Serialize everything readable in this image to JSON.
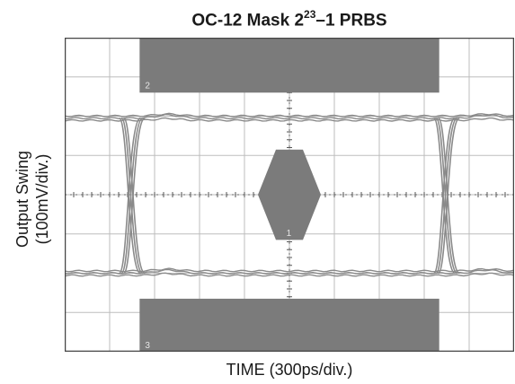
{
  "chart_data": {
    "type": "eye-diagram",
    "title_parts": {
      "prefix": "OC-12 Mask 2",
      "exponent": "23",
      "suffix": "–1 PRBS"
    },
    "xlabel": "TIME (300ps/div.)",
    "ylabel_line1": "Output Swing",
    "ylabel_line2": "(100mV/div.)",
    "grid": {
      "x_divisions": 10,
      "y_divisions": 8,
      "x_units_per_div": 300,
      "x_unit": "ps",
      "y_units_per_div": 100,
      "y_unit": "mV"
    },
    "x_range_ps": [
      -1500,
      1500
    ],
    "y_range_mV": [
      -400,
      400
    ],
    "signal": {
      "high_level_mV": 195,
      "low_level_mV": -200,
      "crossing_times_ps": [
        -1050,
        1050
      ],
      "transition_width_ps": 70
    },
    "mask_regions": [
      {
        "label": "1",
        "shape": "hexagon",
        "points_ps_mV": [
          [
            -210,
            0
          ],
          [
            -90,
            115
          ],
          [
            90,
            115
          ],
          [
            210,
            0
          ],
          [
            90,
            -115
          ],
          [
            -90,
            -115
          ]
        ]
      },
      {
        "label": "2",
        "shape": "rect",
        "x_ps": [
          -1000,
          1000
        ],
        "y_mV": [
          260,
          400
        ]
      },
      {
        "label": "3",
        "shape": "rect",
        "x_ps": [
          -1000,
          1000
        ],
        "y_mV": [
          -400,
          -265
        ]
      }
    ],
    "colors": {
      "mask": "#7b7b7b",
      "trace": "#8a8a8a",
      "grid": "#bdbdbd",
      "background": "#ffffff",
      "frame": "#444444"
    }
  }
}
